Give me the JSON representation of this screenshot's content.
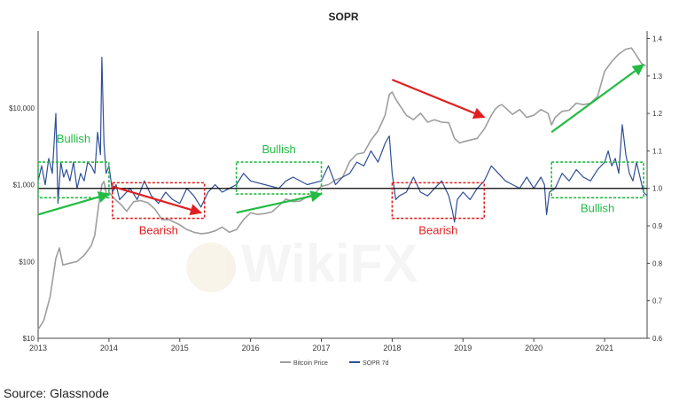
{
  "chart_data": {
    "type": "line",
    "title": "SOPR",
    "source": "Source: Glassnode",
    "x_axis": {
      "ticks": [
        "2013",
        "2014",
        "2015",
        "2016",
        "2017",
        "2018",
        "2019",
        "2020",
        "2021"
      ],
      "range": [
        2013.0,
        2021.6
      ]
    },
    "y_left": {
      "scale": "log",
      "ticks": [
        "$10",
        "$100",
        "$1,000",
        "$10,000"
      ],
      "tick_values": [
        10,
        100,
        1000,
        10000
      ],
      "range": [
        10,
        100000
      ]
    },
    "y_right": {
      "scale": "linear",
      "ticks": [
        "0.6",
        "0.7",
        "0.8",
        "0.9",
        "1.0",
        "1.1",
        "1.2",
        "1.3",
        "1.4"
      ],
      "tick_values": [
        0.6,
        0.7,
        0.8,
        0.9,
        1.0,
        1.1,
        1.2,
        1.3,
        1.4
      ],
      "range": [
        0.6,
        1.42
      ]
    },
    "reference_line": {
      "axis": "right",
      "value": 1.0,
      "color": "#000000"
    },
    "legend": {
      "placement": "bottom-center"
    },
    "series": [
      {
        "name": "Bitcoin Price",
        "axis": "left",
        "color": "#9e9e9e",
        "x": [
          2013.0,
          2013.08,
          2013.17,
          2013.25,
          2013.3,
          2013.35,
          2013.45,
          2013.55,
          2013.65,
          2013.75,
          2013.8,
          2013.85,
          2013.9,
          2013.93,
          2013.97,
          2014.0,
          2014.08,
          2014.17,
          2014.25,
          2014.35,
          2014.45,
          2014.55,
          2014.65,
          2014.75,
          2014.85,
          2015.0,
          2015.1,
          2015.2,
          2015.3,
          2015.4,
          2015.5,
          2015.6,
          2015.7,
          2015.8,
          2015.9,
          2016.0,
          2016.1,
          2016.2,
          2016.3,
          2016.4,
          2016.5,
          2016.6,
          2016.7,
          2016.8,
          2016.9,
          2017.0,
          2017.1,
          2017.2,
          2017.3,
          2017.4,
          2017.5,
          2017.6,
          2017.7,
          2017.8,
          2017.9,
          2017.96,
          2018.0,
          2018.05,
          2018.1,
          2018.2,
          2018.3,
          2018.4,
          2018.5,
          2018.6,
          2018.7,
          2018.8,
          2018.88,
          2018.95,
          2019.0,
          2019.1,
          2019.2,
          2019.3,
          2019.4,
          2019.45,
          2019.5,
          2019.55,
          2019.6,
          2019.7,
          2019.8,
          2019.9,
          2020.0,
          2020.1,
          2020.2,
          2020.25,
          2020.3,
          2020.4,
          2020.5,
          2020.6,
          2020.7,
          2020.8,
          2020.9,
          2021.0,
          2021.1,
          2021.2,
          2021.3,
          2021.38,
          2021.45,
          2021.52,
          2021.58
        ],
        "y": [
          13,
          17,
          35,
          110,
          150,
          90,
          95,
          100,
          120,
          160,
          220,
          500,
          1000,
          1100,
          700,
          800,
          650,
          550,
          450,
          600,
          620,
          580,
          480,
          350,
          350,
          300,
          260,
          240,
          230,
          235,
          250,
          280,
          240,
          260,
          350,
          430,
          410,
          420,
          440,
          530,
          650,
          600,
          610,
          700,
          750,
          950,
          1000,
          1150,
          1250,
          2000,
          2500,
          2600,
          3800,
          5000,
          8000,
          15000,
          16000,
          13000,
          11000,
          8000,
          7000,
          8500,
          6500,
          7000,
          6500,
          6400,
          4000,
          3500,
          3600,
          3800,
          4000,
          5300,
          8000,
          9500,
          10500,
          11000,
          10000,
          8200,
          9500,
          7500,
          8000,
          9500,
          8500,
          6000,
          7500,
          9000,
          9300,
          11500,
          11000,
          11500,
          14000,
          30000,
          40000,
          50000,
          58000,
          60000,
          48000,
          38000,
          35000
        ]
      },
      {
        "name": "SOPR 7d",
        "axis": "right",
        "color": "#2e4f97",
        "x": [
          2013.0,
          2013.05,
          2013.1,
          2013.15,
          2013.2,
          2013.25,
          2013.28,
          2013.32,
          2013.36,
          2013.4,
          2013.45,
          2013.5,
          2013.55,
          2013.6,
          2013.65,
          2013.7,
          2013.75,
          2013.8,
          2013.84,
          2013.88,
          2013.9,
          2013.93,
          2013.96,
          2014.0,
          2014.05,
          2014.1,
          2014.15,
          2014.2,
          2014.3,
          2014.4,
          2014.5,
          2014.6,
          2014.7,
          2014.8,
          2014.9,
          2015.0,
          2015.1,
          2015.2,
          2015.3,
          2015.4,
          2015.5,
          2015.6,
          2015.7,
          2015.8,
          2015.9,
          2016.0,
          2016.2,
          2016.4,
          2016.5,
          2016.6,
          2016.8,
          2017.0,
          2017.1,
          2017.2,
          2017.3,
          2017.4,
          2017.5,
          2017.6,
          2017.7,
          2017.8,
          2017.9,
          2017.96,
          2018.0,
          2018.05,
          2018.1,
          2018.2,
          2018.3,
          2018.4,
          2018.5,
          2018.6,
          2018.7,
          2018.8,
          2018.85,
          2018.88,
          2018.92,
          2019.0,
          2019.1,
          2019.2,
          2019.3,
          2019.4,
          2019.5,
          2019.6,
          2019.7,
          2019.8,
          2019.9,
          2020.0,
          2020.1,
          2020.15,
          2020.18,
          2020.22,
          2020.3,
          2020.4,
          2020.5,
          2020.6,
          2020.7,
          2020.8,
          2020.9,
          2021.0,
          2021.05,
          2021.1,
          2021.15,
          2021.2,
          2021.25,
          2021.3,
          2021.35,
          2021.4,
          2021.45,
          2021.5,
          2021.55,
          2021.6
        ],
        "y": [
          1.02,
          1.06,
          1.01,
          1.08,
          1.04,
          1.2,
          0.96,
          1.07,
          1.03,
          1.05,
          1.02,
          1.07,
          1.0,
          1.04,
          1.02,
          1.07,
          1.06,
          1.04,
          1.15,
          1.09,
          1.35,
          1.12,
          1.04,
          1.06,
          0.99,
          1.01,
          0.97,
          0.98,
          1.0,
          0.97,
          1.02,
          0.98,
          0.96,
          0.99,
          0.97,
          0.96,
          1.0,
          0.98,
          0.95,
          0.99,
          1.01,
          0.99,
          1.0,
          1.01,
          1.04,
          1.02,
          1.01,
          1.0,
          1.02,
          1.03,
          1.01,
          1.02,
          1.06,
          1.01,
          1.03,
          1.04,
          1.07,
          1.06,
          1.1,
          1.07,
          1.12,
          1.14,
          1.04,
          0.97,
          0.98,
          0.99,
          1.03,
          0.99,
          0.98,
          1.0,
          1.02,
          0.98,
          0.94,
          0.91,
          0.97,
          0.99,
          0.97,
          1.0,
          1.02,
          1.06,
          1.04,
          1.02,
          1.01,
          1.0,
          1.03,
          1.0,
          1.03,
          1.01,
          0.93,
          0.99,
          1.0,
          1.04,
          1.02,
          1.05,
          1.03,
          1.02,
          1.05,
          1.07,
          1.1,
          1.06,
          1.08,
          1.04,
          1.17,
          1.09,
          1.04,
          1.02,
          1.07,
          1.03,
          0.99,
          0.98
        ]
      }
    ],
    "annotations": [
      {
        "text": "Bullish",
        "color": "#22bb44",
        "box": {
          "x": [
            2013.0,
            2014.0
          ],
          "y_right": [
            0.975,
            1.07
          ]
        }
      },
      {
        "text": "Bearish",
        "color": "#e02020",
        "box": {
          "x": [
            2014.05,
            2015.35
          ],
          "y_right": [
            0.92,
            1.015
          ]
        }
      },
      {
        "text": "Bullish",
        "color": "#22bb44",
        "box": {
          "x": [
            2015.8,
            2017.0
          ],
          "y_right": [
            0.985,
            1.07
          ]
        }
      },
      {
        "text": "Bearish",
        "color": "#e02020",
        "box": {
          "x": [
            2018.0,
            2019.3
          ],
          "y_right": [
            0.92,
            1.015
          ]
        }
      },
      {
        "text": "Bullish",
        "color": "#22bb44",
        "box": {
          "x": [
            2020.25,
            2021.55
          ],
          "y_right": [
            0.975,
            1.07
          ]
        }
      }
    ],
    "trend_arrows": [
      {
        "color": "#22bb44",
        "from": [
          2013.0,
          0.93
        ],
        "to": [
          2014.0,
          0.985
        ]
      },
      {
        "color": "#e02020",
        "from": [
          2014.05,
          1.005
        ],
        "to": [
          2015.3,
          0.935
        ]
      },
      {
        "color": "#22bb44",
        "from": [
          2015.8,
          0.935
        ],
        "to": [
          2017.0,
          0.985
        ]
      },
      {
        "color": "#e02020",
        "from": [
          2018.0,
          1.29
        ],
        "to": [
          2019.3,
          1.19
        ]
      },
      {
        "color": "#22bb44",
        "from": [
          2020.25,
          1.15
        ],
        "to": [
          2021.55,
          1.33
        ]
      }
    ]
  }
}
